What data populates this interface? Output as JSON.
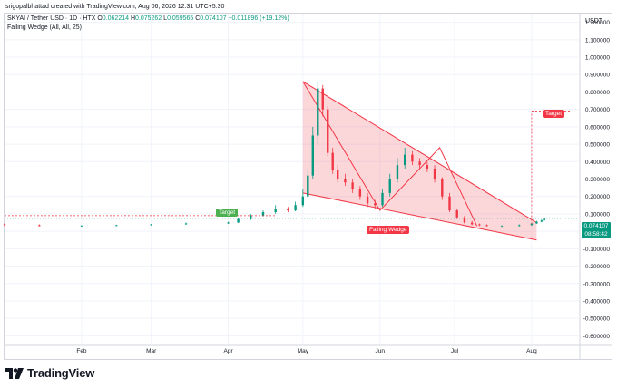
{
  "header": {
    "created_by": "srigopalbhattad created with TradingView.com, Aug 06, 2026 12:31 UTC+5:30"
  },
  "legend": {
    "symbol": "SKYAI / Tether USD · 1D · HTX",
    "open_label": "O",
    "open": "0.062214",
    "high_label": "H",
    "high": "0.075262",
    "low_label": "L",
    "low": "0.059565",
    "close_label": "C",
    "close": "0.074107",
    "change": "+0.011896 (+19.12%)",
    "indicator": "Falling Wedge (All, All, 25)"
  },
  "axis": {
    "unit": "USDT"
  },
  "price_tag": {
    "value": "0.074107",
    "countdown": "08:58:42"
  },
  "annotations": {
    "target_left": "Target",
    "target_right": "Target",
    "pattern": "Falling Wedge"
  },
  "footer": {
    "brand": "TradingView"
  },
  "colors": {
    "up": "#089981",
    "down": "#f23645",
    "wedge_line": "#f23645",
    "wedge_fill": "#f2364533",
    "target_green": "#4caf50",
    "target_red": "#f23645",
    "grid": "#f0f3fa"
  },
  "chart_data": {
    "type": "candlestick",
    "title": "SKYAI / Tether USD · 1D · HTX",
    "y_ticks": [
      "1.200000",
      "1.100000",
      "1.000000",
      "0.900000",
      "0.800000",
      "0.700000",
      "0.600000",
      "0.500000",
      "0.400000",
      "0.300000",
      "0.200000",
      "0.100000",
      "0.000000",
      "-0.100000",
      "-0.200000",
      "-0.300000",
      "-0.400000",
      "-0.500000",
      "-0.600000"
    ],
    "ylim": [
      -0.65,
      1.25
    ],
    "x_ticks": [
      "Feb",
      "Mar",
      "Apr",
      "May",
      "Jun",
      "Jul",
      "Aug"
    ],
    "series": [
      {
        "name": "SKYAI/USDT",
        "x": [
          "01-01",
          "01-15",
          "02-01",
          "02-15",
          "03-01",
          "03-15",
          "04-01",
          "04-05",
          "04-10",
          "04-15",
          "04-20",
          "04-25",
          "04-28",
          "05-01",
          "05-03",
          "05-05",
          "05-07",
          "05-09",
          "05-11",
          "05-13",
          "05-15",
          "05-18",
          "05-21",
          "05-24",
          "05-27",
          "05-30",
          "06-02",
          "06-05",
          "06-08",
          "06-11",
          "06-14",
          "06-17",
          "06-20",
          "06-23",
          "06-26",
          "06-29",
          "07-02",
          "07-05",
          "07-08",
          "07-11",
          "07-14",
          "07-20",
          "07-27",
          "08-01",
          "08-03",
          "08-05",
          "08-06"
        ],
        "open": [
          0.04,
          0.035,
          0.03,
          0.032,
          0.035,
          0.04,
          0.045,
          0.05,
          0.07,
          0.09,
          0.11,
          0.13,
          0.12,
          0.15,
          0.2,
          0.32,
          0.55,
          0.82,
          0.7,
          0.45,
          0.35,
          0.3,
          0.28,
          0.24,
          0.2,
          0.16,
          0.15,
          0.22,
          0.3,
          0.38,
          0.44,
          0.4,
          0.38,
          0.36,
          0.3,
          0.2,
          0.12,
          0.08,
          0.05,
          0.04,
          0.035,
          0.03,
          0.03,
          0.035,
          0.045,
          0.055,
          0.062
        ],
        "close": [
          0.035,
          0.03,
          0.032,
          0.035,
          0.04,
          0.045,
          0.05,
          0.07,
          0.09,
          0.11,
          0.13,
          0.12,
          0.15,
          0.2,
          0.32,
          0.55,
          0.82,
          0.7,
          0.45,
          0.35,
          0.3,
          0.28,
          0.24,
          0.2,
          0.16,
          0.15,
          0.22,
          0.3,
          0.38,
          0.44,
          0.4,
          0.38,
          0.36,
          0.3,
          0.2,
          0.12,
          0.08,
          0.05,
          0.04,
          0.035,
          0.03,
          0.03,
          0.035,
          0.045,
          0.055,
          0.062,
          0.074
        ],
        "high": [
          0.045,
          0.04,
          0.036,
          0.038,
          0.042,
          0.05,
          0.055,
          0.075,
          0.1,
          0.12,
          0.15,
          0.14,
          0.17,
          0.24,
          0.36,
          0.6,
          0.86,
          0.84,
          0.72,
          0.48,
          0.38,
          0.33,
          0.3,
          0.26,
          0.22,
          0.18,
          0.24,
          0.33,
          0.42,
          0.48,
          0.46,
          0.42,
          0.4,
          0.38,
          0.31,
          0.22,
          0.13,
          0.09,
          0.06,
          0.045,
          0.04,
          0.035,
          0.04,
          0.05,
          0.06,
          0.068,
          0.075
        ],
        "low": [
          0.03,
          0.028,
          0.028,
          0.03,
          0.033,
          0.038,
          0.043,
          0.048,
          0.065,
          0.085,
          0.1,
          0.11,
          0.115,
          0.14,
          0.19,
          0.3,
          0.5,
          0.66,
          0.43,
          0.33,
          0.28,
          0.26,
          0.22,
          0.18,
          0.14,
          0.13,
          0.14,
          0.2,
          0.28,
          0.36,
          0.38,
          0.36,
          0.34,
          0.28,
          0.18,
          0.11,
          0.07,
          0.045,
          0.035,
          0.03,
          0.028,
          0.027,
          0.028,
          0.033,
          0.043,
          0.052,
          0.06
        ]
      }
    ],
    "wedge": {
      "upper": [
        [
          "05-01",
          0.86
        ],
        [
          "08-03",
          0.05
        ]
      ],
      "lower": [
        [
          "05-01",
          0.22
        ],
        [
          "08-03",
          -0.05
        ]
      ],
      "pivots": [
        [
          "05-01",
          0.86
        ],
        [
          "06-01",
          0.12
        ],
        [
          "06-25",
          0.48
        ],
        [
          "07-10",
          0.03
        ]
      ]
    },
    "targets": [
      {
        "label": "Target",
        "level": 0.09,
        "position": "left"
      },
      {
        "label": "Target",
        "level": 0.69,
        "position": "right"
      }
    ],
    "grid": true
  }
}
